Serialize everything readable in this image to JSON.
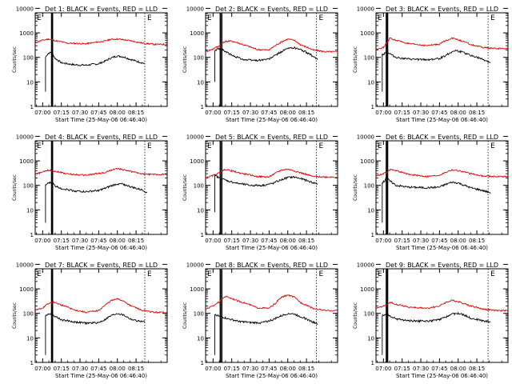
{
  "figure": {
    "background": "#ffffff",
    "axis_color": "#000000",
    "events_color": "#000000",
    "lld_color": "#e00000",
    "ylabel": "Counts/sec",
    "xlabel": "Start Time (25-May-06 06:46:40)",
    "x_ticks": [
      "07:00",
      "07:15",
      "07:30",
      "07:45",
      "08:00",
      "08:15"
    ],
    "y_ticks": [
      "1",
      "10",
      "100",
      "1000",
      "10000"
    ]
  },
  "chart_data": [
    {
      "type": "line",
      "detector": 1,
      "title": "Det 1: BLACK = Events, RED = LLD",
      "xlabel": "Start Time (25-May-06 06:46:40)",
      "ylabel": "Counts/sec",
      "x_range_min": [
        -6,
        100
      ],
      "y_range": [
        1,
        12000
      ],
      "y_scale": "log",
      "x_ticks": [
        "07:00",
        "07:15",
        "07:30",
        "07:45",
        "08:00",
        "08:15"
      ],
      "vlines_min": [
        7.2,
        7.9,
        82.0
      ],
      "lld": {
        "x_min": [
          -6,
          0,
          5,
          10,
          20,
          35,
          50,
          55,
          60,
          70,
          80,
          85,
          90,
          100
        ],
        "y": [
          400,
          500,
          560,
          480,
          380,
          360,
          460,
          550,
          560,
          480,
          380,
          360,
          340,
          340
        ]
      },
      "events": {
        "x_min": [
          2.3,
          2.3,
          3.5,
          5,
          7,
          10,
          15,
          25,
          35,
          45,
          50,
          55,
          60,
          65,
          70,
          75,
          80,
          82
        ],
        "y": [
          4,
          100,
          130,
          150,
          160,
          90,
          60,
          50,
          48,
          55,
          70,
          95,
          115,
          105,
          85,
          70,
          60,
          55
        ]
      },
      "corner_mark": "E",
      "end_mark": "E"
    },
    {
      "type": "line",
      "detector": 2,
      "title": "Det 2: BLACK = Events, RED = LLD",
      "xlabel": "Start Time (25-May-06 06:46:40)",
      "ylabel": "Counts/sec",
      "x_range_min": [
        -6,
        100
      ],
      "y_range": [
        1,
        12000
      ],
      "y_scale": "log",
      "x_ticks": [
        "07:00",
        "07:15",
        "07:30",
        "07:45",
        "08:00",
        "08:15"
      ],
      "vlines_min": [
        5.8,
        7.0,
        83.0
      ],
      "lld": {
        "x_min": [
          -6,
          0,
          5,
          10,
          15,
          25,
          35,
          45,
          50,
          55,
          60,
          65,
          70,
          80,
          90,
          100
        ],
        "y": [
          170,
          220,
          300,
          450,
          460,
          320,
          210,
          200,
          300,
          430,
          560,
          500,
          330,
          200,
          170,
          170
        ]
      },
      "events": {
        "x_min": [
          1.4,
          1.4,
          2.5,
          4,
          6,
          8,
          10,
          15,
          25,
          35,
          45,
          50,
          55,
          60,
          65,
          70,
          75,
          80,
          84
        ],
        "y": [
          10,
          180,
          200,
          230,
          220,
          200,
          170,
          120,
          80,
          75,
          85,
          120,
          170,
          230,
          250,
          210,
          160,
          110,
          80
        ]
      },
      "corner_mark": "E",
      "end_mark": "E"
    },
    {
      "type": "line",
      "detector": 3,
      "title": "Det 3: BLACK = Events, RED = LLD",
      "xlabel": "Start Time (25-May-06 06:46:40)",
      "ylabel": "Counts/sec",
      "x_range_min": [
        -6,
        100
      ],
      "y_range": [
        1,
        12000
      ],
      "y_scale": "log",
      "x_ticks": [
        "07:00",
        "07:15",
        "07:30",
        "07:45",
        "08:00",
        "08:15"
      ],
      "vlines_min": [
        2.3,
        3.3,
        84.0
      ],
      "lld": {
        "x_min": [
          -6,
          0,
          3,
          5,
          10,
          20,
          35,
          45,
          50,
          55,
          60,
          70,
          80,
          90,
          100
        ],
        "y": [
          220,
          250,
          400,
          600,
          500,
          360,
          300,
          350,
          480,
          620,
          520,
          330,
          250,
          230,
          230
        ]
      },
      "events": {
        "x_min": [
          -1,
          -1,
          0.5,
          2,
          3,
          3.5,
          5,
          10,
          20,
          35,
          45,
          50,
          55,
          58,
          62,
          68,
          75,
          82,
          86
        ],
        "y": [
          4,
          130,
          140,
          170,
          280,
          160,
          140,
          100,
          85,
          80,
          90,
          120,
          170,
          190,
          170,
          130,
          100,
          75,
          60
        ]
      },
      "corner_mark": "E",
      "end_mark": "E"
    },
    {
      "type": "line",
      "detector": 4,
      "title": "Det 4: BLACK = Events, RED = LLD",
      "xlabel": "Start Time (25-May-06 06:46:40)",
      "ylabel": "Counts/sec",
      "x_range_min": [
        -6,
        100
      ],
      "y_range": [
        1,
        12000
      ],
      "y_scale": "log",
      "x_ticks": [
        "07:00",
        "07:15",
        "07:30",
        "07:45",
        "08:00",
        "08:15"
      ],
      "vlines_min": [
        7.2,
        7.9,
        82.0
      ],
      "lld": {
        "x_min": [
          -6,
          0,
          5,
          10,
          20,
          35,
          50,
          55,
          60,
          70,
          80,
          90,
          100
        ],
        "y": [
          280,
          350,
          420,
          380,
          290,
          260,
          330,
          420,
          480,
          380,
          290,
          280,
          280
        ]
      },
      "events": {
        "x_min": [
          2.3,
          2.3,
          4,
          6,
          8,
          10,
          15,
          25,
          35,
          45,
          50,
          55,
          60,
          65,
          70,
          75,
          80,
          84
        ],
        "y": [
          3,
          100,
          120,
          130,
          120,
          95,
          75,
          60,
          55,
          62,
          75,
          95,
          115,
          110,
          90,
          75,
          65,
          50
        ]
      },
      "corner_mark": "E",
      "end_mark": "E"
    },
    {
      "type": "line",
      "detector": 5,
      "title": "Det 5: BLACK = Events, RED = LLD",
      "xlabel": "Start Time (25-May-06 06:46:40)",
      "ylabel": "Counts/sec",
      "x_range_min": [
        -6,
        100
      ],
      "y_range": [
        1,
        12000
      ],
      "y_scale": "log",
      "x_ticks": [
        "07:00",
        "07:15",
        "07:30",
        "07:45",
        "08:00",
        "08:15"
      ],
      "vlines_min": [
        5.8,
        7.0,
        83.0
      ],
      "lld": {
        "x_min": [
          -6,
          0,
          5,
          10,
          20,
          35,
          45,
          50,
          55,
          60,
          70,
          80,
          90,
          100
        ],
        "y": [
          200,
          250,
          320,
          450,
          330,
          230,
          220,
          310,
          420,
          460,
          330,
          230,
          220,
          220
        ]
      },
      "events": {
        "x_min": [
          1.4,
          1.4,
          3,
          5,
          8,
          12,
          20,
          30,
          40,
          48,
          55,
          60,
          65,
          70,
          75,
          80,
          84
        ],
        "y": [
          8,
          250,
          230,
          200,
          180,
          150,
          120,
          100,
          100,
          120,
          170,
          210,
          220,
          190,
          160,
          130,
          115
        ]
      },
      "corner_mark": "E",
      "end_mark": "E"
    },
    {
      "type": "line",
      "detector": 6,
      "title": "Det 6: BLACK = Events, RED = LLD",
      "xlabel": "Start Time (25-May-06 06:46:40)",
      "ylabel": "Counts/sec",
      "x_range_min": [
        -6,
        100
      ],
      "y_range": [
        1,
        12000
      ],
      "y_scale": "log",
      "x_ticks": [
        "07:00",
        "07:15",
        "07:30",
        "07:45",
        "08:00",
        "08:15"
      ],
      "vlines_min": [
        2.3,
        3.3,
        84.0
      ],
      "lld": {
        "x_min": [
          -6,
          0,
          3,
          6,
          10,
          20,
          35,
          45,
          50,
          55,
          60,
          70,
          80,
          90,
          100
        ],
        "y": [
          240,
          300,
          350,
          460,
          400,
          280,
          230,
          260,
          340,
          430,
          400,
          300,
          240,
          230,
          230
        ]
      },
      "events": {
        "x_min": [
          -1,
          -1,
          1,
          2.5,
          3.5,
          5,
          10,
          20,
          35,
          45,
          50,
          55,
          60,
          65,
          70,
          78,
          86
        ],
        "y": [
          3,
          130,
          150,
          250,
          180,
          150,
          100,
          85,
          80,
          85,
          110,
          135,
          125,
          100,
          80,
          65,
          50
        ]
      },
      "corner_mark": "E",
      "end_mark": "E"
    },
    {
      "type": "line",
      "detector": 7,
      "title": "Det 7: BLACK = Events, RED = LLD",
      "xlabel": "Start Time (25-May-06 06:46:40)",
      "ylabel": "Counts/sec",
      "x_range_min": [
        -6,
        100
      ],
      "y_range": [
        1,
        12000
      ],
      "y_scale": "log",
      "x_ticks": [
        "07:00",
        "07:15",
        "07:30",
        "07:45",
        "08:00",
        "08:15"
      ],
      "vlines_min": [
        7.2,
        7.9,
        82.0
      ],
      "lld": {
        "x_min": [
          -6,
          0,
          5,
          8,
          15,
          25,
          35,
          45,
          50,
          55,
          60,
          65,
          70,
          80,
          90,
          100
        ],
        "y": [
          130,
          170,
          250,
          300,
          220,
          140,
          110,
          130,
          210,
          330,
          390,
          320,
          210,
          130,
          110,
          110
        ]
      },
      "events": {
        "x_min": [
          2.3,
          2.3,
          4,
          6,
          8,
          10,
          15,
          25,
          35,
          45,
          50,
          55,
          60,
          65,
          70,
          75,
          82
        ],
        "y": [
          2,
          85,
          90,
          100,
          95,
          75,
          55,
          45,
          40,
          42,
          55,
          80,
          100,
          85,
          60,
          50,
          45
        ]
      },
      "corner_mark": "E",
      "end_mark": "E"
    },
    {
      "type": "line",
      "detector": 8,
      "title": "Det 8: BLACK = Events, RED = LLD",
      "xlabel": "Start Time (25-May-06 06:46:40)",
      "ylabel": "Counts/sec",
      "x_range_min": [
        -6,
        100
      ],
      "y_range": [
        1,
        12000
      ],
      "y_scale": "log",
      "x_ticks": [
        "07:00",
        "07:15",
        "07:30",
        "07:45",
        "08:00",
        "08:15"
      ],
      "vlines_min": [
        5.8,
        7.0,
        83.0
      ],
      "lld": {
        "x_min": [
          -6,
          0,
          5,
          10,
          20,
          35,
          45,
          50,
          55,
          60,
          65,
          70,
          80,
          90,
          100
        ],
        "y": [
          150,
          200,
          300,
          500,
          320,
          170,
          160,
          250,
          450,
          560,
          460,
          280,
          160,
          130,
          130
        ]
      },
      "events": {
        "x_min": [
          1.4,
          1.4,
          3,
          5,
          8,
          12,
          20,
          30,
          40,
          48,
          55,
          60,
          65,
          70,
          75,
          80,
          84
        ],
        "y": [
          2,
          90,
          85,
          75,
          70,
          60,
          48,
          42,
          42,
          55,
          80,
          100,
          95,
          75,
          58,
          45,
          38
        ]
      },
      "corner_mark": "E",
      "end_mark": "E"
    },
    {
      "type": "line",
      "detector": 9,
      "title": "Det 9: BLACK = Events, RED = LLD",
      "xlabel": "Start Time (25-May-06 06:46:40)",
      "ylabel": "Counts/sec",
      "x_range_min": [
        -6,
        100
      ],
      "y_range": [
        1,
        12000
      ],
      "y_scale": "log",
      "x_ticks": [
        "07:00",
        "07:15",
        "07:30",
        "07:45",
        "08:00",
        "08:15"
      ],
      "vlines_min": [
        2.3,
        3.3,
        84.0
      ],
      "lld": {
        "x_min": [
          -6,
          0,
          3,
          6,
          10,
          20,
          35,
          45,
          50,
          55,
          60,
          70,
          80,
          90,
          100
        ],
        "y": [
          160,
          200,
          230,
          280,
          240,
          180,
          160,
          200,
          280,
          340,
          300,
          200,
          150,
          130,
          130
        ]
      },
      "events": {
        "x_min": [
          -1,
          -1,
          1,
          2.5,
          3.5,
          5,
          10,
          20,
          35,
          45,
          50,
          55,
          60,
          65,
          70,
          78,
          86
        ],
        "y": [
          2,
          80,
          85,
          100,
          90,
          75,
          60,
          50,
          48,
          55,
          70,
          95,
          100,
          85,
          65,
          52,
          45
        ]
      },
      "corner_mark": "E",
      "end_mark": "E"
    }
  ]
}
